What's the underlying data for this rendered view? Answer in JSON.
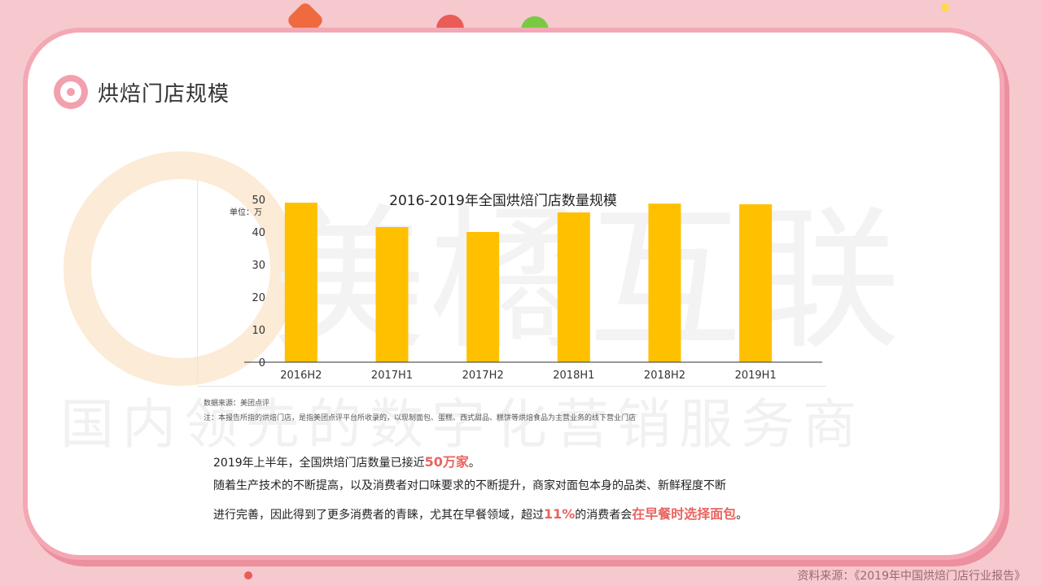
{
  "page": {
    "title": "烘焙门店规模"
  },
  "watermark": {
    "brand": "美橘互联",
    "slogan": "国内领先的数字化营销服务商"
  },
  "chart_data": {
    "type": "bar",
    "title": "2016-2019年全国烘焙门店数量规模",
    "unit_label": "单位：万",
    "categories": [
      "2016H2",
      "2017H1",
      "2017H2",
      "2018H1",
      "2018H2",
      "2019H1"
    ],
    "values": [
      49,
      41.5,
      40,
      46,
      48.7,
      48.5
    ],
    "ylim": [
      0,
      50
    ],
    "yticks": [
      0,
      10,
      20,
      30,
      40,
      50
    ],
    "bar_color": "#ffc000",
    "grid": false,
    "legend": "none"
  },
  "notes": {
    "source": "数据来源：美团点评",
    "definition": "注：本报告所指的烘焙门店，是指美团点评平台所收录的，以现制面包、蛋糕、西式甜品、糕饼等烘焙食品为主营业务的线下营业门店"
  },
  "text": {
    "line1_pre": "2019年上半年，全国烘焙门店数量已接近",
    "line1_hl": "50万家",
    "line1_post": "。",
    "line2": "随着生产技术的不断提高，以及消费者对口味要求的不断提升，商家对面包本身的品类、新鲜程度不断",
    "line3_pre": "进行完善，因此得到了更多消费者的青睐，尤其在早餐领域，超过",
    "line3_hl1": "11%",
    "line3_mid": "的消费者会",
    "line3_hl2": "在早餐时选择面包",
    "line3_post": "。"
  },
  "footer": {
    "source": "资料来源：《2019年中国烘焙门店行业报告》"
  },
  "colors": {
    "background": "#f6c9cf",
    "card_border": "#f3a8b4",
    "accent": "#e8645f"
  }
}
